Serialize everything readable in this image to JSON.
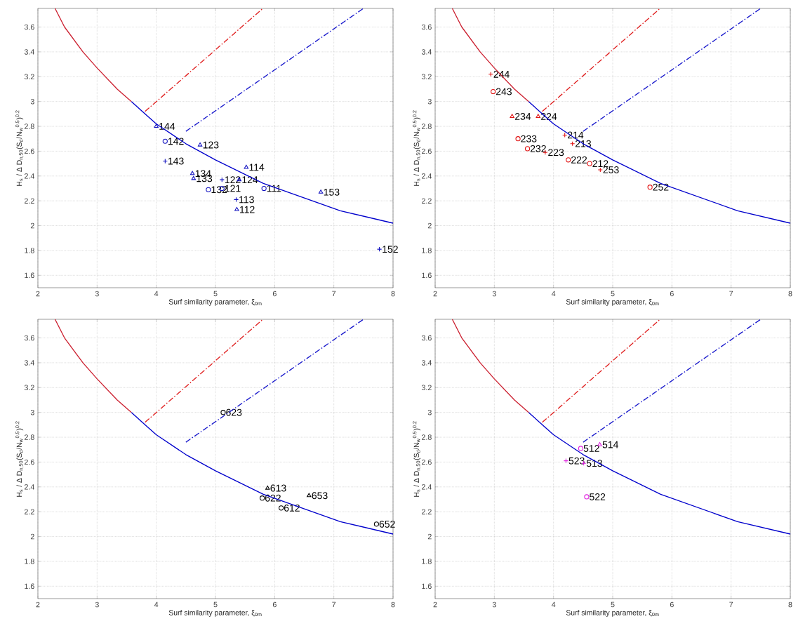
{
  "chart_data": [
    {
      "type": "scatter",
      "xlabel": "Surf similarity parameter, ξ$_{0m}$",
      "ylabel": "H$_{s}$ / Δ D$_{n,50}$(S$_{d}$/N$_{w}$$^{0.5}$)$^{0.2}$",
      "xlim": [
        2,
        8
      ],
      "ylim": [
        1.5,
        3.75
      ],
      "xticks": [
        2,
        3,
        4,
        5,
        6,
        7,
        8
      ],
      "yticks": [
        1.6,
        1.8,
        2,
        2.2,
        2.4,
        2.6,
        2.8,
        3,
        3.2,
        3.4,
        3.6
      ],
      "grid": true,
      "series": [
        {
          "type": "line",
          "color": "#cc2030",
          "line_style": "solid",
          "x": [
            2.29,
            2.45,
            2.76,
            3.0,
            3.34,
            3.58
          ],
          "values": [
            3.75,
            3.6,
            3.4,
            3.27,
            3.1,
            3.0
          ]
        },
        {
          "type": "line",
          "color": "#0000cc",
          "line_style": "solid",
          "x": [
            3.58,
            3.81,
            4.0,
            4.5,
            5.0,
            5.81,
            7.11,
            8.0
          ],
          "values": [
            3.0,
            2.9,
            2.82,
            2.66,
            2.53,
            2.34,
            2.12,
            2.02
          ]
        },
        {
          "type": "line",
          "color": "#e02020",
          "line_style": "dashed",
          "x": [
            3.81,
            5.8
          ],
          "values": [
            2.92,
            3.75
          ]
        },
        {
          "type": "line",
          "color": "#1a1acc",
          "line_style": "dashed",
          "x": [
            4.5,
            7.5
          ],
          "values": [
            2.76,
            3.75
          ]
        },
        {
          "type": "scatter",
          "marker": "triangle",
          "color": "#1010c0",
          "x": [
            4.0,
            4.74,
            4.61,
            4.63,
            5.4,
            5.52,
            6.78,
            5.36
          ],
          "values": [
            2.8,
            2.65,
            2.42,
            2.38,
            2.37,
            2.47,
            2.27,
            2.13
          ]
        },
        {
          "type": "scatter",
          "marker": "circle",
          "color": "#1010c0",
          "x": [
            4.15,
            4.88,
            5.11,
            5.82
          ],
          "values": [
            2.68,
            2.29,
            2.3,
            2.3
          ]
        },
        {
          "type": "scatter",
          "marker": "cross",
          "color": "#1010c0",
          "x": [
            4.15,
            5.11,
            5.35,
            7.77
          ],
          "values": [
            2.52,
            2.37,
            2.21,
            1.81
          ]
        }
      ],
      "annotations": [
        {
          "text": "144",
          "x": 4.0,
          "y": 2.8
        },
        {
          "text": "142",
          "x": 4.15,
          "y": 2.68
        },
        {
          "text": "123",
          "x": 4.74,
          "y": 2.65
        },
        {
          "text": "143",
          "x": 4.15,
          "y": 2.52
        },
        {
          "text": "134",
          "x": 4.61,
          "y": 2.42
        },
        {
          "text": "133",
          "x": 4.63,
          "y": 2.38
        },
        {
          "text": "122",
          "x": 5.11,
          "y": 2.37
        },
        {
          "text": "124",
          "x": 5.4,
          "y": 2.37
        },
        {
          "text": "114",
          "x": 5.52,
          "y": 2.47
        },
        {
          "text": "132",
          "x": 4.88,
          "y": 2.29
        },
        {
          "text": "121",
          "x": 5.11,
          "y": 2.3
        },
        {
          "text": "111",
          "x": 5.82,
          "y": 2.3
        },
        {
          "text": "153",
          "x": 6.78,
          "y": 2.27
        },
        {
          "text": "113",
          "x": 5.35,
          "y": 2.21
        },
        {
          "text": "112",
          "x": 5.36,
          "y": 2.13
        },
        {
          "text": "152",
          "x": 7.77,
          "y": 1.81
        }
      ]
    },
    {
      "type": "scatter",
      "xlabel": "Surf similarity parameter, ξ$_{0m}$",
      "ylabel": "H$_{s}$ / Δ D$_{n,50}$(S$_{d}$/N$_{w}$$^{0.5}$)$^{0.2}$",
      "xlim": [
        2,
        8
      ],
      "ylim": [
        1.5,
        3.75
      ],
      "xticks": [
        2,
        3,
        4,
        5,
        6,
        7,
        8
      ],
      "yticks": [
        1.6,
        1.8,
        2,
        2.2,
        2.4,
        2.6,
        2.8,
        3,
        3.2,
        3.4,
        3.6
      ],
      "grid": true,
      "series": [
        {
          "type": "line",
          "color": "#cc2030",
          "line_style": "solid",
          "x": [
            2.29,
            2.45,
            2.76,
            3.0,
            3.34,
            3.58
          ],
          "values": [
            3.75,
            3.6,
            3.4,
            3.27,
            3.1,
            3.0
          ]
        },
        {
          "type": "line",
          "color": "#0000cc",
          "line_style": "solid",
          "x": [
            3.58,
            3.81,
            4.0,
            4.5,
            5.0,
            5.81,
            7.11,
            8.0
          ],
          "values": [
            3.0,
            2.9,
            2.82,
            2.66,
            2.53,
            2.34,
            2.12,
            2.02
          ]
        },
        {
          "type": "line",
          "color": "#e02020",
          "line_style": "dashed",
          "x": [
            3.81,
            5.8
          ],
          "values": [
            2.92,
            3.75
          ]
        },
        {
          "type": "line",
          "color": "#1a1acc",
          "line_style": "dashed",
          "x": [
            4.5,
            7.5
          ],
          "values": [
            2.76,
            3.75
          ]
        },
        {
          "type": "scatter",
          "marker": "triangle",
          "color": "#e01010",
          "x": [
            3.3,
            3.74
          ],
          "values": [
            2.88,
            2.88
          ]
        },
        {
          "type": "scatter",
          "marker": "circle",
          "color": "#e01010",
          "x": [
            2.98,
            3.4,
            3.56,
            4.25,
            4.61,
            5.63
          ],
          "values": [
            3.08,
            2.7,
            2.62,
            2.53,
            2.5,
            2.31
          ]
        },
        {
          "type": "scatter",
          "marker": "cross",
          "color": "#e01010",
          "x": [
            2.94,
            4.19,
            4.32,
            3.86,
            4.79
          ],
          "values": [
            3.22,
            2.73,
            2.66,
            2.59,
            2.45
          ]
        }
      ],
      "annotations": [
        {
          "text": "244",
          "x": 2.94,
          "y": 3.22
        },
        {
          "text": "243",
          "x": 2.98,
          "y": 3.08
        },
        {
          "text": "234",
          "x": 3.3,
          "y": 2.88
        },
        {
          "text": "224",
          "x": 3.74,
          "y": 2.88
        },
        {
          "text": "233",
          "x": 3.4,
          "y": 2.7
        },
        {
          "text": "214",
          "x": 4.19,
          "y": 2.73
        },
        {
          "text": "213",
          "x": 4.32,
          "y": 2.66
        },
        {
          "text": "232",
          "x": 3.56,
          "y": 2.62
        },
        {
          "text": "223",
          "x": 3.86,
          "y": 2.59
        },
        {
          "text": "222",
          "x": 4.25,
          "y": 2.53
        },
        {
          "text": "212",
          "x": 4.61,
          "y": 2.5
        },
        {
          "text": "253",
          "x": 4.79,
          "y": 2.45
        },
        {
          "text": "252",
          "x": 5.63,
          "y": 2.31
        }
      ]
    },
    {
      "type": "scatter",
      "xlabel": "Surf similarity parameter, ξ$_{0m}$",
      "ylabel": "H$_{s}$ / Δ D$_{n,50}$(S$_{d}$/N$_{w}$$^{0.5}$)$^{0.2}$",
      "xlim": [
        2,
        8
      ],
      "ylim": [
        1.5,
        3.75
      ],
      "xticks": [
        2,
        3,
        4,
        5,
        6,
        7,
        8
      ],
      "yticks": [
        1.6,
        1.8,
        2,
        2.2,
        2.4,
        2.6,
        2.8,
        3,
        3.2,
        3.4,
        3.6
      ],
      "grid": true,
      "series": [
        {
          "type": "line",
          "color": "#cc2030",
          "line_style": "solid",
          "x": [
            2.29,
            2.45,
            2.76,
            3.0,
            3.34,
            3.58
          ],
          "values": [
            3.75,
            3.6,
            3.4,
            3.27,
            3.1,
            3.0
          ]
        },
        {
          "type": "line",
          "color": "#0000cc",
          "line_style": "solid",
          "x": [
            3.58,
            3.81,
            4.0,
            4.5,
            5.0,
            5.81,
            7.11,
            8.0
          ],
          "values": [
            3.0,
            2.9,
            2.82,
            2.66,
            2.53,
            2.34,
            2.12,
            2.02
          ]
        },
        {
          "type": "line",
          "color": "#e02020",
          "line_style": "dashed",
          "x": [
            3.81,
            5.8
          ],
          "values": [
            2.92,
            3.75
          ]
        },
        {
          "type": "line",
          "color": "#1a1acc",
          "line_style": "dashed",
          "x": [
            4.5,
            7.5
          ],
          "values": [
            2.76,
            3.75
          ]
        },
        {
          "type": "scatter",
          "marker": "triangle",
          "color": "#000000",
          "x": [
            5.88,
            6.58
          ],
          "values": [
            2.39,
            2.33
          ]
        },
        {
          "type": "scatter",
          "marker": "circle",
          "color": "#000000",
          "x": [
            5.13,
            5.79,
            6.11,
            7.72
          ],
          "values": [
            3.0,
            2.31,
            2.23,
            2.1
          ]
        }
      ],
      "annotations": [
        {
          "text": "623",
          "x": 5.13,
          "y": 3.0
        },
        {
          "text": "613",
          "x": 5.88,
          "y": 2.39
        },
        {
          "text": "622",
          "x": 5.79,
          "y": 2.31
        },
        {
          "text": "612",
          "x": 6.11,
          "y": 2.23
        },
        {
          "text": "653",
          "x": 6.58,
          "y": 2.33
        },
        {
          "text": "652",
          "x": 7.72,
          "y": 2.1
        }
      ]
    },
    {
      "type": "scatter",
      "xlabel": "Surf similarity parameter, ξ$_{0m}$",
      "ylabel": "H$_{s}$ / Δ D$_{n,50}$(S$_{d}$/N$_{w}$$^{0.5}$)$^{0.2}$",
      "xlim": [
        2,
        8
      ],
      "ylim": [
        1.5,
        3.75
      ],
      "xticks": [
        2,
        3,
        4,
        5,
        6,
        7,
        8
      ],
      "yticks": [
        1.6,
        1.8,
        2,
        2.2,
        2.4,
        2.6,
        2.8,
        3,
        3.2,
        3.4,
        3.6
      ],
      "grid": true,
      "series": [
        {
          "type": "line",
          "color": "#cc2030",
          "line_style": "solid",
          "x": [
            2.29,
            2.45,
            2.76,
            3.0,
            3.34,
            3.58
          ],
          "values": [
            3.75,
            3.6,
            3.4,
            3.27,
            3.1,
            3.0
          ]
        },
        {
          "type": "line",
          "color": "#0000cc",
          "line_style": "solid",
          "x": [
            3.58,
            3.81,
            4.0,
            4.5,
            5.0,
            5.81,
            7.11,
            8.0
          ],
          "values": [
            3.0,
            2.9,
            2.82,
            2.66,
            2.53,
            2.34,
            2.12,
            2.02
          ]
        },
        {
          "type": "line",
          "color": "#e02020",
          "line_style": "dashed",
          "x": [
            3.81,
            5.8
          ],
          "values": [
            2.92,
            3.75
          ]
        },
        {
          "type": "line",
          "color": "#1a1acc",
          "line_style": "dashed",
          "x": [
            4.5,
            7.5
          ],
          "values": [
            2.76,
            3.75
          ]
        },
        {
          "type": "scatter",
          "marker": "triangle",
          "color": "#e020e0",
          "x": [
            4.78
          ],
          "values": [
            2.74
          ]
        },
        {
          "type": "scatter",
          "marker": "circle",
          "color": "#e020e0",
          "x": [
            4.46,
            4.56
          ],
          "values": [
            2.71,
            2.32
          ]
        },
        {
          "type": "scatter",
          "marker": "cross",
          "color": "#e020e0",
          "x": [
            4.21,
            4.51
          ],
          "values": [
            2.61,
            2.59
          ]
        }
      ],
      "annotations": [
        {
          "text": "512",
          "x": 4.46,
          "y": 2.71
        },
        {
          "text": "514",
          "x": 4.78,
          "y": 2.74
        },
        {
          "text": "523",
          "x": 4.21,
          "y": 2.61
        },
        {
          "text": "513",
          "x": 4.51,
          "y": 2.59
        },
        {
          "text": "522",
          "x": 4.56,
          "y": 2.32
        }
      ]
    }
  ]
}
